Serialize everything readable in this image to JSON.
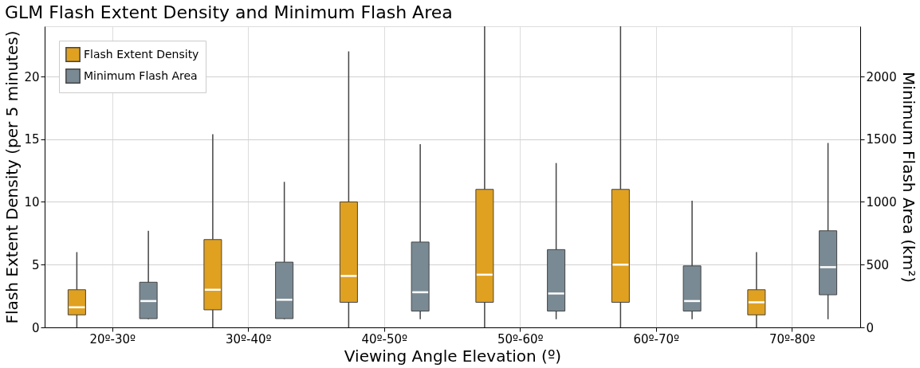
{
  "chart_data": {
    "type": "box",
    "title": "GLM Flash Extent Density and Minimum Flash Area",
    "xlabel": "Viewing Angle Elevation (º)",
    "ylabel": "Flash Extent Density (per 5 minutes)",
    "y2label": "Minimum Flash Area (km²)",
    "categories": [
      "20º-30º",
      "30º-40º",
      "40º-50º",
      "50º-60º",
      "60º-70º",
      "70º-80º"
    ],
    "ylim": [
      0,
      24
    ],
    "yticks": [
      0,
      5,
      10,
      15,
      20
    ],
    "y2lim": [
      0,
      2400
    ],
    "y2ticks": [
      0,
      500,
      1000,
      1500,
      2000
    ],
    "grid": true,
    "legend": "top left",
    "series": [
      {
        "name": "Flash Extent Density",
        "color": "#e0a120",
        "boxes": [
          {
            "low": 0,
            "q1": 1,
            "median": 1.6,
            "q3": 3,
            "high": 6
          },
          {
            "low": 0,
            "q1": 1.4,
            "median": 3,
            "q3": 7,
            "high": 15.4
          },
          {
            "low": 0,
            "q1": 2,
            "median": 4.1,
            "q3": 10,
            "high": 22
          },
          {
            "low": 0,
            "q1": 2,
            "median": 4.2,
            "q3": 11,
            "high": 24
          },
          {
            "low": 0,
            "q1": 2,
            "median": 5,
            "q3": 11,
            "high": 24
          },
          {
            "low": 0,
            "q1": 1,
            "median": 2,
            "q3": 3,
            "high": 6
          }
        ]
      },
      {
        "name": "Minimum Flash Area",
        "color": "#7a8a94",
        "axis": "y2",
        "boxes": [
          {
            "low": 65,
            "q1": 70,
            "median": 210,
            "q3": 360,
            "high": 770
          },
          {
            "low": 65,
            "q1": 70,
            "median": 220,
            "q3": 520,
            "high": 1160
          },
          {
            "low": 65,
            "q1": 130,
            "median": 280,
            "q3": 680,
            "high": 1460
          },
          {
            "low": 65,
            "q1": 130,
            "median": 270,
            "q3": 620,
            "high": 1310
          },
          {
            "low": 65,
            "q1": 130,
            "median": 210,
            "q3": 490,
            "high": 1010
          },
          {
            "low": 65,
            "q1": 260,
            "median": 480,
            "q3": 770,
            "high": 1470
          }
        ]
      }
    ]
  }
}
